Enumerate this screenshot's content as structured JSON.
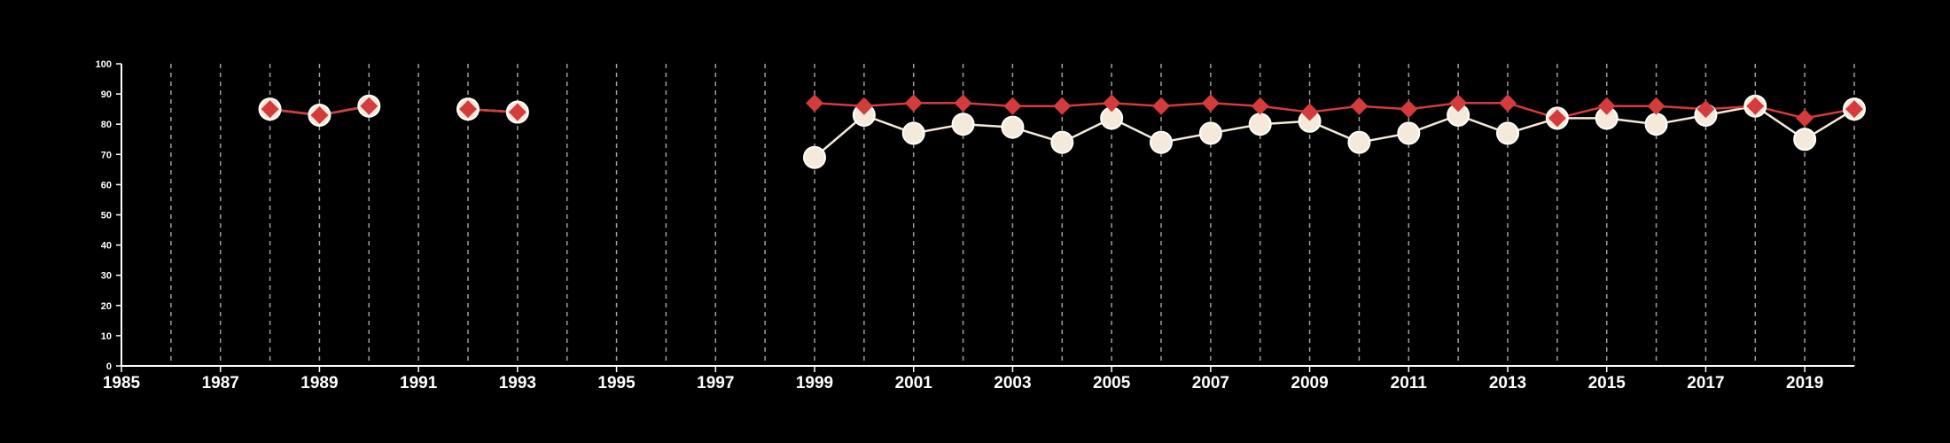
{
  "chart_data": {
    "type": "line",
    "title": "",
    "xlabel": "",
    "ylabel": "",
    "xlim": [
      1985,
      2020
    ],
    "ylim": [
      0,
      100
    ],
    "x_ticks": [
      1985,
      1987,
      1989,
      1991,
      1993,
      1995,
      1997,
      1999,
      2001,
      2003,
      2005,
      2007,
      2009,
      2011,
      2013,
      2015,
      2017,
      2019
    ],
    "x_tick_labels": [
      "1985",
      "1987",
      "1989",
      "1991",
      "1993",
      "1995",
      "1997",
      "1999",
      "2001",
      "2003",
      "2005",
      "2007",
      "2009",
      "2011",
      "2013",
      "2015",
      "2017",
      "2019"
    ],
    "y_ticks": [
      0,
      10,
      20,
      30,
      40,
      50,
      60,
      70,
      80,
      90,
      100
    ],
    "y_tick_labels": [
      "0",
      "10",
      "20",
      "30",
      "40",
      "50",
      "60",
      "70",
      "80",
      "90",
      "100"
    ],
    "grid": "vertical dashed lines at each year",
    "background": "#000000",
    "x": [
      1985,
      1986,
      1987,
      1988,
      1989,
      1990,
      1991,
      1992,
      1993,
      1994,
      1995,
      1996,
      1997,
      1998,
      1999,
      2000,
      2001,
      2002,
      2003,
      2004,
      2005,
      2006,
      2007,
      2008,
      2009,
      2010,
      2011,
      2012,
      2013,
      2014,
      2015,
      2016,
      2017,
      2018,
      2019,
      2020
    ],
    "series": [
      {
        "marker": "circle",
        "color": "#f5ead9",
        "values": [
          null,
          null,
          null,
          85,
          83,
          86,
          null,
          85,
          84,
          null,
          null,
          null,
          null,
          null,
          69,
          83,
          77,
          80,
          79,
          74,
          82,
          74,
          77,
          80,
          81,
          74,
          77,
          83,
          77,
          82,
          82,
          80,
          83,
          86,
          75,
          85
        ]
      },
      {
        "marker": "diamond",
        "color": "#d43b3b",
        "values": [
          null,
          null,
          null,
          85,
          83,
          86,
          null,
          85,
          84,
          null,
          null,
          null,
          null,
          null,
          87,
          86,
          87,
          87,
          86,
          86,
          87,
          86,
          87,
          86,
          84,
          86,
          85,
          87,
          87,
          82,
          86,
          86,
          85,
          86,
          82,
          85
        ]
      }
    ]
  }
}
